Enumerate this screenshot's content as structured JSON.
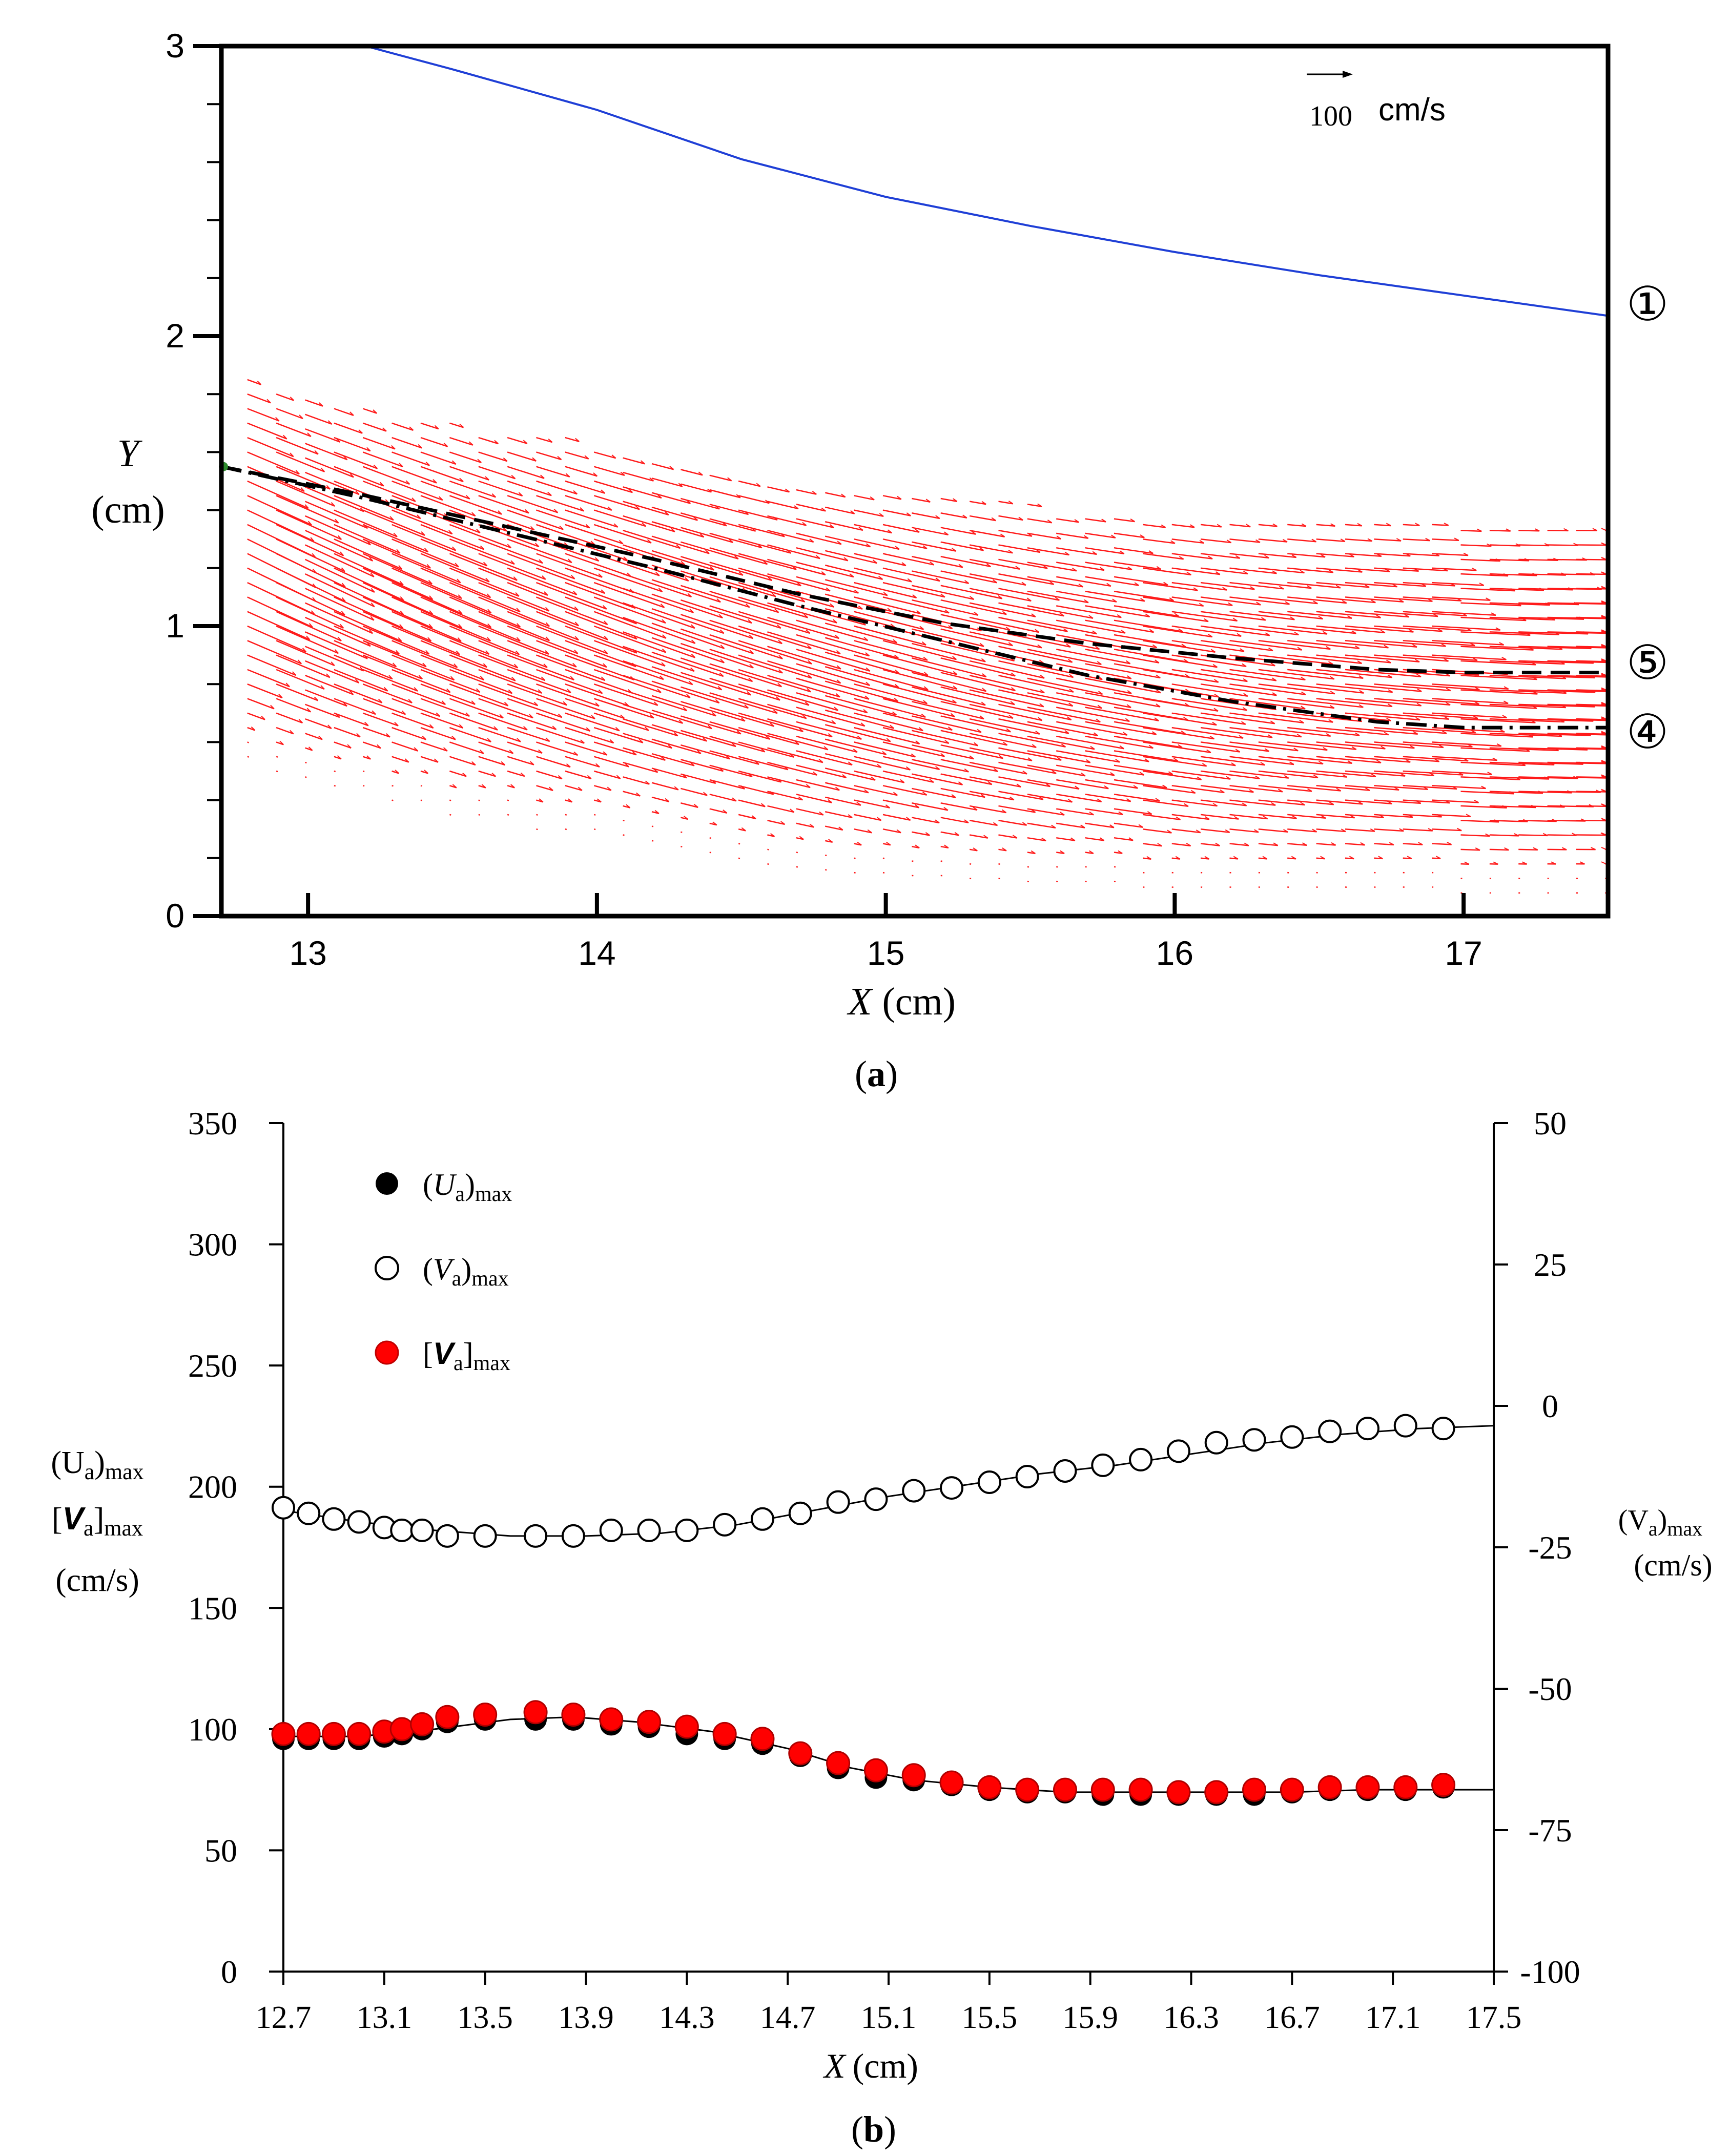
{
  "chart_data": [
    {
      "id": "panel_a",
      "type": "line",
      "caption": "(a)",
      "caption_bold": "a",
      "xlabel_var": "X",
      "xlabel_unit": "(cm)",
      "ylabel_var": "Y",
      "ylabel_unit": "(cm)",
      "xlim": [
        12.7,
        17.5
      ],
      "ylim": [
        0,
        3
      ],
      "xticks": [
        13,
        14,
        15,
        16,
        17
      ],
      "xtick_labels": [
        "13",
        "14",
        "15",
        "16",
        "17"
      ],
      "yticks": [
        0,
        1,
        2,
        3
      ],
      "ytick_labels": [
        "0",
        "1",
        "2",
        "3"
      ],
      "y_minor_step": 0.2,
      "reference_vector": {
        "value_label": "100",
        "unit_label": "cm/s"
      },
      "series": [
        {
          "name": "①",
          "color": "#1f3fd6",
          "dash": "solid",
          "x": [
            13.2,
            13.5,
            14.0,
            14.5,
            15.0,
            15.5,
            16.0,
            16.5,
            17.0,
            17.5
          ],
          "y": [
            3.0,
            2.92,
            2.78,
            2.61,
            2.48,
            2.38,
            2.29,
            2.21,
            2.14,
            2.07
          ]
        },
        {
          "name": "⑤",
          "color": "#000000",
          "dash": "dashed",
          "x": [
            12.7,
            13.2,
            13.7,
            14.2,
            14.7,
            15.2,
            15.7,
            16.2,
            16.7,
            17.0,
            17.5
          ],
          "y": [
            1.55,
            1.45,
            1.34,
            1.23,
            1.11,
            1.01,
            0.94,
            0.89,
            0.85,
            0.84,
            0.84
          ]
        },
        {
          "name": "④",
          "color": "#000000",
          "dash": "dashdot",
          "x": [
            12.7,
            13.2,
            13.7,
            14.2,
            14.7,
            15.2,
            15.7,
            16.2,
            16.7,
            17.0,
            17.5
          ],
          "y": [
            1.55,
            1.44,
            1.32,
            1.2,
            1.07,
            0.95,
            0.83,
            0.74,
            0.67,
            0.65,
            0.65
          ]
        }
      ],
      "vector_field": {
        "color": "#ff1a1a",
        "columns_x": [
          12.79,
          12.89,
          12.99,
          13.09,
          13.19,
          13.29,
          13.39,
          13.49,
          13.59,
          13.69,
          13.79,
          13.89,
          13.99,
          14.09,
          14.19,
          14.29,
          14.39,
          14.49,
          14.59,
          14.69,
          14.79,
          14.89,
          14.99,
          15.09,
          15.19,
          15.29,
          15.39,
          15.49,
          15.59,
          15.69,
          15.79,
          15.89,
          15.99,
          16.09,
          16.19,
          16.29,
          16.39,
          16.49,
          16.59,
          16.69,
          16.79,
          16.89,
          16.99,
          17.09,
          17.19,
          17.29,
          17.39,
          17.49
        ],
        "column_bottom_y": [
          0.55,
          0.5,
          0.48,
          0.45,
          0.45,
          0.4,
          0.4,
          0.35,
          0.35,
          0.35,
          0.3,
          0.3,
          0.3,
          0.28,
          0.26,
          0.24,
          0.22,
          0.2,
          0.18,
          0.17,
          0.16,
          0.15,
          0.15,
          0.14,
          0.14,
          0.13,
          0.13,
          0.12,
          0.12,
          0.12,
          0.12,
          0.1,
          0.1,
          0.1,
          0.1,
          0.1,
          0.1,
          0.1,
          0.1,
          0.1,
          0.1,
          0.1,
          0.08,
          0.08,
          0.08,
          0.08,
          0.08,
          0.08
        ],
        "column_top_y": [
          1.85,
          1.82,
          1.8,
          1.78,
          1.75,
          1.74,
          1.72,
          1.7,
          1.68,
          1.68,
          1.66,
          1.65,
          1.64,
          1.62,
          1.6,
          1.58,
          1.56,
          1.54,
          1.52,
          1.5,
          1.49,
          1.48,
          1.47,
          1.46,
          1.45,
          1.44,
          1.43,
          1.42,
          1.41,
          1.4,
          1.4,
          1.39,
          1.39,
          1.38,
          1.38,
          1.37,
          1.37,
          1.37,
          1.36,
          1.36,
          1.36,
          1.36,
          1.36,
          1.36,
          1.36,
          1.36,
          1.36,
          1.36
        ],
        "row_step": 0.05,
        "max_speed_cm_s": 100,
        "slope_start": -0.5,
        "slope_end": 0.0
      }
    },
    {
      "id": "panel_b",
      "type": "scatter",
      "caption": "(b)",
      "caption_bold": "b",
      "xlabel_var": "X",
      "xlabel_unit": "(cm)",
      "xlim": [
        12.7,
        17.5
      ],
      "ylim_left": [
        0,
        350
      ],
      "ylim_right": [
        -100,
        50
      ],
      "xticks": [
        12.7,
        13.1,
        13.5,
        13.9,
        14.3,
        14.7,
        15.1,
        15.5,
        15.9,
        16.3,
        16.7,
        17.1,
        17.5
      ],
      "xtick_labels": [
        "12.7",
        "13.1",
        "13.5",
        "13.9",
        "14.3",
        "14.7",
        "15.1",
        "15.5",
        "15.9",
        "16.3",
        "16.7",
        "17.1",
        "17.5"
      ],
      "yticks_left": [
        0,
        50,
        100,
        150,
        200,
        250,
        300,
        350
      ],
      "ytick_labels_left": [
        "0",
        "50",
        "100",
        "150",
        "200",
        "250",
        "300",
        "350"
      ],
      "yticks_right": [
        -100,
        -75,
        -50,
        -25,
        0,
        25,
        50
      ],
      "ytick_labels_right": [
        "-100",
        "-75",
        "-50",
        "-25",
        "0",
        "25",
        "50"
      ],
      "left_axis_labels": {
        "u_var": "(U",
        "u_sub": "a",
        "u_close": ")",
        "u_max": "max",
        "v_open": "[",
        "v_var": "V",
        "v_sub": "a",
        "v_close": "]",
        "v_max": "max",
        "unit": "(cm/s)"
      },
      "right_axis_labels": {
        "var": "(V",
        "sub": "a",
        "close": ")",
        "max": "max",
        "unit": "(cm/s)"
      },
      "legend": [
        {
          "name": "(Ua)max",
          "open": "(",
          "var": "U",
          "sub": "a",
          "close": ")",
          "max": "max",
          "marker": "filled-black"
        },
        {
          "name": "(Va)max",
          "open": "(",
          "var": "V",
          "sub": "a",
          "close": ")",
          "max": "max",
          "marker": "open-black"
        },
        {
          "name": "[Va]max",
          "open": "[",
          "var": "V",
          "sub": "a",
          "close": "]",
          "max": "max",
          "marker": "filled-red"
        }
      ],
      "x": [
        12.7,
        12.8,
        12.9,
        13.0,
        13.1,
        13.17,
        13.25,
        13.35,
        13.5,
        13.7,
        13.85,
        14.0,
        14.15,
        14.3,
        14.45,
        14.6,
        14.75,
        14.9,
        15.05,
        15.2,
        15.35,
        15.5,
        15.65,
        15.8,
        15.95,
        16.1,
        16.25,
        16.4,
        16.55,
        16.7,
        16.85,
        17.0,
        17.15,
        17.3
      ],
      "series": [
        {
          "name": "(Ua)max",
          "axis": "left",
          "marker": "filled-black",
          "values": [
            96,
            96,
            96,
            96,
            97,
            98,
            100,
            103,
            104,
            104,
            104,
            102,
            101,
            98,
            96,
            94,
            89,
            84,
            80,
            79,
            77,
            75,
            74,
            74,
            73,
            73,
            73,
            73,
            73,
            74,
            75,
            75,
            75,
            76
          ]
        },
        {
          "name": "[Va]max",
          "axis": "left",
          "marker": "filled-red",
          "values": [
            98,
            98,
            98,
            98,
            99,
            100,
            102,
            105,
            106,
            107,
            106,
            104,
            103,
            101,
            98,
            96,
            90,
            86,
            83,
            81,
            78,
            76,
            75,
            75,
            75,
            75,
            74,
            74,
            75,
            75,
            76,
            76,
            76,
            77
          ]
        },
        {
          "name": "(Va)max",
          "axis": "right",
          "marker": "open-black",
          "values": [
            -18,
            -19,
            -20,
            -20.5,
            -21.5,
            -22,
            -22,
            -23,
            -23,
            -23,
            -23,
            -22,
            -22,
            -22,
            -21,
            -20,
            -19,
            -17,
            -16.5,
            -15,
            -14.5,
            -13.5,
            -12.5,
            -11.5,
            -10.5,
            -9.5,
            -8,
            -6.5,
            -6,
            -5.5,
            -4.5,
            -4,
            -3.5,
            -4
          ]
        }
      ],
      "fit_left_x": [
        12.7,
        13.0,
        13.3,
        13.6,
        13.85,
        14.1,
        14.4,
        14.7,
        14.95,
        15.2,
        15.5,
        15.8,
        16.1,
        16.4,
        16.7,
        17.0,
        17.5
      ],
      "fit_left_y": [
        97,
        97,
        100,
        104,
        105,
        103,
        99,
        92,
        84,
        79,
        76,
        74,
        74,
        74,
        74,
        75,
        75
      ],
      "fit_right_x": [
        12.7,
        13.0,
        13.3,
        13.6,
        13.9,
        14.2,
        14.5,
        14.8,
        15.1,
        15.4,
        15.7,
        16.0,
        16.3,
        16.6,
        16.9,
        17.2,
        17.5
      ],
      "fit_right_y": [
        -18.5,
        -20.5,
        -22,
        -23,
        -23,
        -22.5,
        -21,
        -18.5,
        -16,
        -14,
        -12,
        -10.5,
        -8.5,
        -6.5,
        -5,
        -4,
        -3.5
      ]
    }
  ]
}
